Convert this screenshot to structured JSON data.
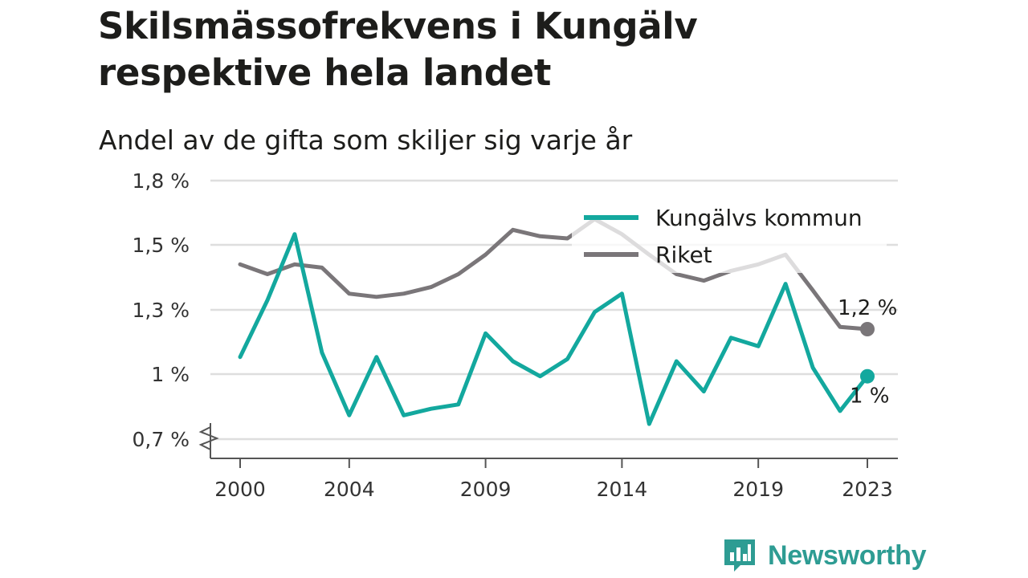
{
  "title": "Skilsmässofrekvens i Kungälv respektive hela landet",
  "subtitle": "Andel av de gifta som skiljer sig varje år",
  "brand": {
    "name": "Newsworthy",
    "logo_icon": "bar-chart-speech-bubble-icon"
  },
  "chart_data": {
    "type": "line",
    "x": [
      2000,
      2001,
      2002,
      2003,
      2004,
      2005,
      2006,
      2007,
      2008,
      2009,
      2010,
      2011,
      2012,
      2013,
      2014,
      2015,
      2016,
      2017,
      2018,
      2019,
      2020,
      2021,
      2022,
      2023
    ],
    "x_tick_labels": [
      "2000",
      "2004",
      "2009",
      "2014",
      "2019",
      "2023"
    ],
    "y_tick_labels": [
      "1,8 %",
      "1,5 %",
      "1,3 %",
      "1 %",
      "0,7 %"
    ],
    "y_ticks": [
      1.8,
      1.5,
      1.3,
      1.0,
      0.7
    ],
    "ylim": [
      0.7,
      1.8
    ],
    "axis_break": true,
    "grid": true,
    "legend_position": "top-right",
    "series": [
      {
        "name": "Kungälvs kommun",
        "color": "#13a89e",
        "values": [
          1.08,
          1.33,
          1.55,
          1.1,
          0.81,
          1.08,
          0.81,
          0.84,
          0.86,
          1.19,
          1.06,
          0.99,
          1.07,
          1.29,
          1.35,
          0.77,
          1.06,
          0.92,
          1.17,
          1.13,
          1.38,
          1.03,
          0.83,
          0.99
        ],
        "end_label": "1 %"
      },
      {
        "name": "Riket",
        "color": "#7a7679",
        "values": [
          1.44,
          1.41,
          1.44,
          1.43,
          1.35,
          1.34,
          1.35,
          1.37,
          1.41,
          1.47,
          1.57,
          1.54,
          1.53,
          1.62,
          1.55,
          1.47,
          1.41,
          1.39,
          1.42,
          1.44,
          1.47,
          1.36,
          1.22,
          1.21
        ],
        "end_label": "1,2 %"
      }
    ]
  }
}
